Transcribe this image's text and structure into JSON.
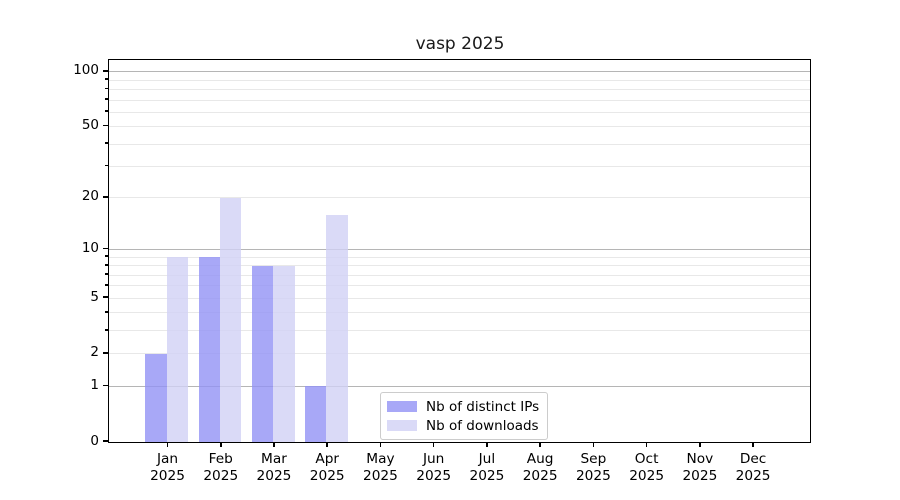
{
  "figure": {
    "background": "#ffffff"
  },
  "chart_data": {
    "type": "bar",
    "title": "vasp 2025",
    "categories": [
      "Jan",
      "Feb",
      "Mar",
      "Apr",
      "May",
      "Jun",
      "Jul",
      "Aug",
      "Sep",
      "Oct",
      "Nov",
      "Dec"
    ],
    "x_tick_year": "2025",
    "series": [
      {
        "name": "Nb of distinct IPs",
        "color_hex": "#9292F5",
        "alpha": 0.8,
        "values": [
          2,
          9,
          8,
          1,
          0,
          0,
          0,
          0,
          0,
          0,
          0,
          0
        ]
      },
      {
        "name": "Nb of downloads",
        "color_hex": "#D1D1F5",
        "alpha": 0.8,
        "values": [
          9,
          20,
          8,
          16,
          0,
          0,
          0,
          0,
          0,
          0,
          0,
          0
        ]
      }
    ],
    "yscale": "log10(v+1)",
    "y_ticks": [
      0,
      1,
      2,
      5,
      10,
      20,
      50,
      100
    ],
    "y_major_gridlines": [
      1,
      10,
      100
    ],
    "y_minor_gridlines": [
      2,
      3,
      4,
      5,
      6,
      7,
      8,
      9,
      20,
      30,
      40,
      50,
      60,
      70,
      80,
      90
    ],
    "ylim": [
      0,
      116
    ],
    "grid": true,
    "legend_position": "lower center, inside plot",
    "colors": {
      "spine": "#000000",
      "grid_major": "#b5b5b5",
      "grid_minor": "#e8e8e8",
      "legend_border": "#cccccc",
      "text": "#000000"
    }
  }
}
